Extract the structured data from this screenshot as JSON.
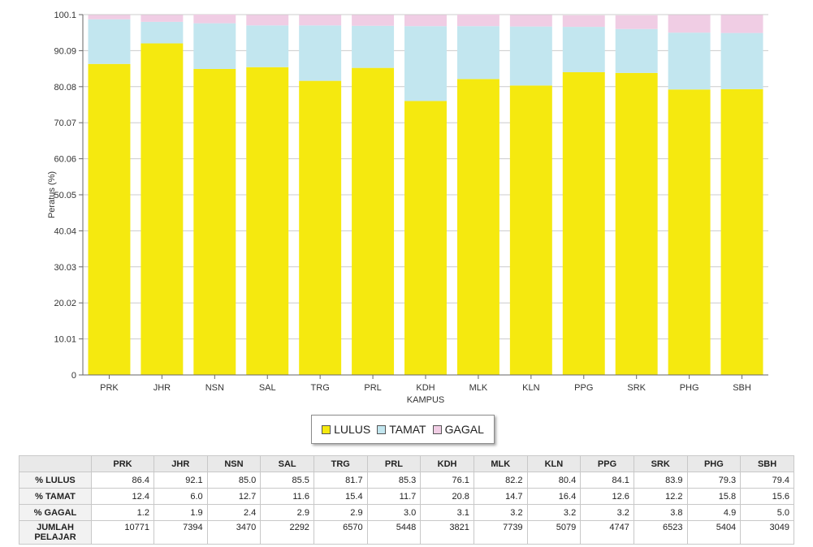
{
  "chart_data": {
    "type": "bar",
    "stacked": true,
    "categories": [
      "PRK",
      "JHR",
      "NSN",
      "SAL",
      "TRG",
      "PRL",
      "KDH",
      "MLK",
      "KLN",
      "PPG",
      "SRK",
      "PHG",
      "SBH"
    ],
    "series": [
      {
        "name": "LULUS",
        "color": "#f5e90f",
        "values": [
          86.4,
          92.1,
          85.0,
          85.5,
          81.7,
          85.3,
          76.1,
          82.2,
          80.4,
          84.1,
          83.9,
          79.3,
          79.4
        ]
      },
      {
        "name": "TAMAT",
        "color": "#c2e6ef",
        "values": [
          12.4,
          6.0,
          12.7,
          11.6,
          15.4,
          11.7,
          20.8,
          14.7,
          16.4,
          12.6,
          12.2,
          15.8,
          15.6
        ]
      },
      {
        "name": "GAGAL",
        "color": "#f0cde4",
        "values": [
          1.2,
          1.9,
          2.4,
          2.9,
          2.9,
          3.0,
          3.1,
          3.2,
          3.2,
          3.2,
          3.8,
          4.9,
          5.0
        ]
      }
    ],
    "xlabel": "KAMPUS",
    "ylabel": "Peratus (%)",
    "ylim": [
      0,
      100.1
    ],
    "yticks": [
      "0",
      "10.01",
      "20.02",
      "30.03",
      "40.04",
      "50.05",
      "60.06",
      "70.07",
      "80.08",
      "90.09",
      "100.1"
    ],
    "grid": true,
    "legend": "bottom",
    "table": {
      "rows": [
        {
          "label": "% LULUS",
          "values": [
            "86.4",
            "92.1",
            "85.0",
            "85.5",
            "81.7",
            "85.3",
            "76.1",
            "82.2",
            "80.4",
            "84.1",
            "83.9",
            "79.3",
            "79.4"
          ]
        },
        {
          "label": "% TAMAT",
          "values": [
            "12.4",
            "6.0",
            "12.7",
            "11.6",
            "15.4",
            "11.7",
            "20.8",
            "14.7",
            "16.4",
            "12.6",
            "12.2",
            "15.8",
            "15.6"
          ]
        },
        {
          "label": "% GAGAL",
          "values": [
            "1.2",
            "1.9",
            "2.4",
            "2.9",
            "2.9",
            "3.0",
            "3.1",
            "3.2",
            "3.2",
            "3.2",
            "3.8",
            "4.9",
            "5.0"
          ]
        },
        {
          "label_lines": [
            "JUMLAH",
            "PELAJAR"
          ],
          "values": [
            "10771",
            "7394",
            "3470",
            "2292",
            "6570",
            "5448",
            "3821",
            "7739",
            "5079",
            "4747",
            "6523",
            "5404",
            "3049"
          ]
        }
      ]
    }
  }
}
